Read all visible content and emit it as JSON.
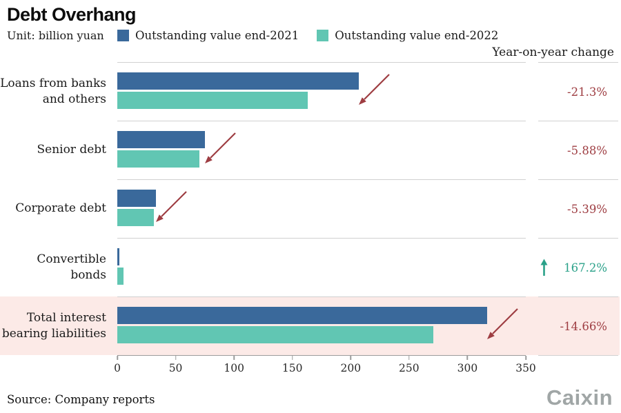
{
  "header": {
    "title": "Debt Overhang",
    "unit_label": "Unit: billion yuan",
    "change_header": "Year-on-year change"
  },
  "legend": [
    {
      "label": "Outstanding value end-2021",
      "color": "#3a699b"
    },
    {
      "label": "Outstanding value end-2022",
      "color": "#61c6b3"
    }
  ],
  "footer": {
    "source": "Source: Company reports",
    "brand": "Caixin"
  },
  "chart_data": {
    "type": "bar",
    "orientation": "horizontal",
    "title": "Debt Overhang",
    "unit": "billion yuan",
    "xlim": [
      0,
      350
    ],
    "x_ticks": [
      0,
      50,
      100,
      150,
      200,
      250,
      300,
      350
    ],
    "series_names": [
      "Outstanding value end-2021",
      "Outstanding value end-2022"
    ],
    "rows": [
      {
        "label": "Loans from banks and others",
        "end_2021": 207,
        "end_2022": 163,
        "change": "-21.3%",
        "direction": "down",
        "highlight": false
      },
      {
        "label": "Senior debt",
        "end_2021": 75,
        "end_2022": 70.6,
        "change": "-5.88%",
        "direction": "down",
        "highlight": false
      },
      {
        "label": "Corporate debt",
        "end_2021": 33,
        "end_2022": 31.2,
        "change": "-5.39%",
        "direction": "down",
        "highlight": false
      },
      {
        "label": "Convertible bonds",
        "end_2021": 2,
        "end_2022": 5.3,
        "change": "167.2%",
        "direction": "up",
        "highlight": false
      },
      {
        "label": "Total interest bearing liabilities",
        "end_2021": 317,
        "end_2022": 270.5,
        "change": "-14.66%",
        "direction": "down",
        "highlight": true
      }
    ],
    "colors": {
      "end_2021": "#3a699b",
      "end_2022": "#61c6b3",
      "negative": "#9e3d42",
      "positive": "#2aa189",
      "highlight_bg": "#fceae7",
      "gridline": "#d0d0d0"
    },
    "legend_position": "top",
    "grid": false
  }
}
